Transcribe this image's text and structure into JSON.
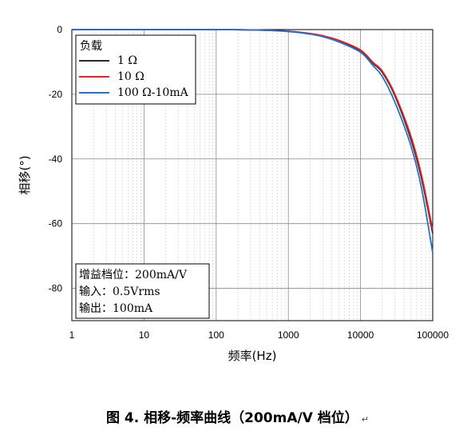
{
  "chart_data": {
    "type": "line",
    "x_scale": "log",
    "xlim": [
      1,
      100000
    ],
    "ylim": [
      -90,
      0
    ],
    "xlabel": "频率(Hz)",
    "ylabel": "相移(°)",
    "x_ticks": [
      "1",
      "10",
      "100",
      "1000",
      "10000",
      "100000"
    ],
    "y_ticks": [
      "0",
      "-20",
      "-40",
      "-60",
      "-80"
    ],
    "grid": true,
    "legend": {
      "title": "负载",
      "placement": "top-left"
    },
    "x": [
      1,
      10,
      100,
      300,
      1000,
      2000,
      3000,
      5000,
      10000,
      15000,
      20000,
      30000,
      50000,
      70000,
      100000
    ],
    "series": [
      {
        "name": "1 Ω",
        "color": "#2b2b2b",
        "values": [
          0,
          0,
          0,
          -0.1,
          -0.5,
          -1.3,
          -2.0,
          -3.5,
          -6.5,
          -10.5,
          -13.2,
          -20.5,
          -34,
          -46,
          -63
        ]
      },
      {
        "name": "10 Ω",
        "color": "#e0262a",
        "values": [
          0,
          0,
          0,
          -0.1,
          -0.5,
          -1.2,
          -1.9,
          -3.3,
          -6.3,
          -10.2,
          -12.8,
          -20,
          -33,
          -45,
          -62
        ]
      },
      {
        "name": "100 Ω-10mA",
        "color": "#2a6fc0",
        "values": [
          0,
          0,
          0,
          -0.1,
          -0.6,
          -1.4,
          -2.2,
          -3.8,
          -7.0,
          -11.2,
          -14.5,
          -22.5,
          -36,
          -49,
          -69
        ]
      }
    ]
  },
  "info_box": {
    "line1": "增益档位：200mA/V",
    "line2": "输入：0.5Vrms",
    "line3": "输出：100mA"
  },
  "caption": {
    "text": "图 4. 相移-频率曲线（200mA/V 档位）",
    "mark": "↵"
  }
}
